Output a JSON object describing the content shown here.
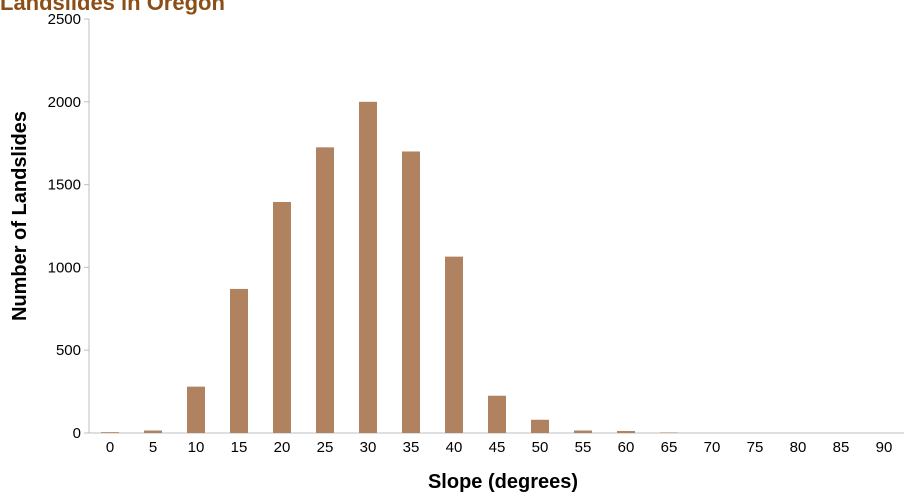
{
  "chart_data": {
    "type": "bar",
    "title": "Landslides in Oregon",
    "xlabel": "Slope (degrees)",
    "ylabel": "Number of Landslides",
    "ylim": [
      0,
      2500
    ],
    "yticks": [
      0,
      500,
      1000,
      1500,
      2000,
      2500
    ],
    "grid": false,
    "bar_color": "#b08260",
    "title_color": "#8b4e16",
    "categories": [
      "0",
      "5",
      "10",
      "15",
      "20",
      "25",
      "30",
      "35",
      "40",
      "45",
      "50",
      "55",
      "60",
      "65",
      "70",
      "75",
      "80",
      "85",
      "90"
    ],
    "values": [
      5,
      15,
      280,
      870,
      1395,
      1725,
      2000,
      1700,
      1065,
      225,
      80,
      15,
      12,
      3,
      0,
      0,
      0,
      0,
      0
    ]
  }
}
